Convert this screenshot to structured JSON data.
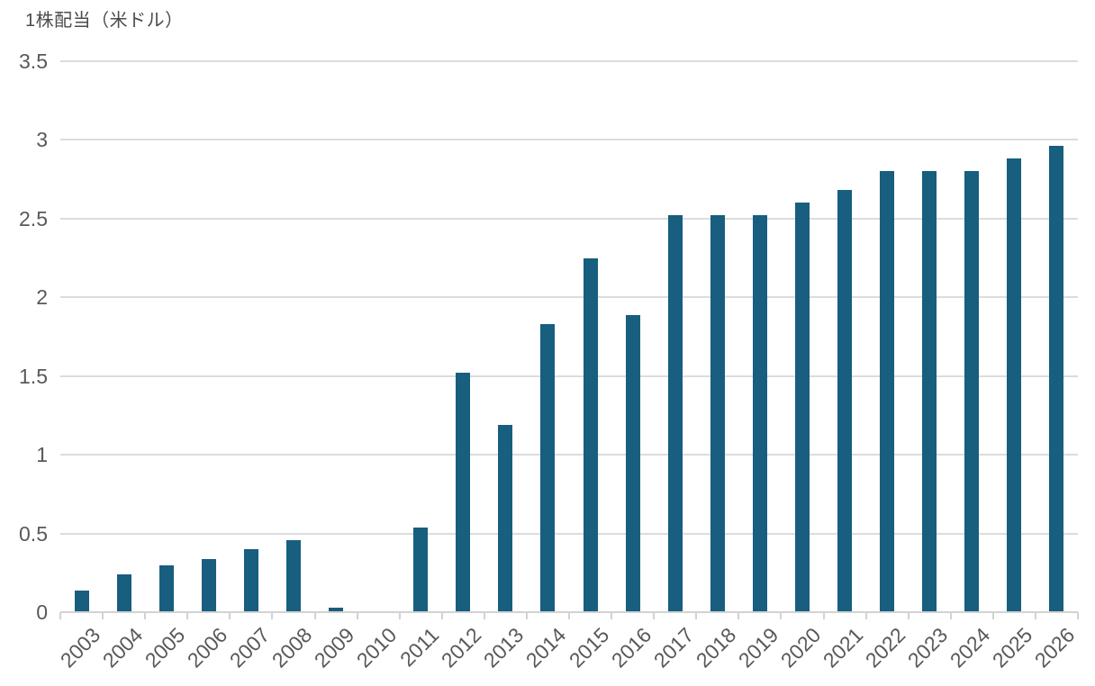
{
  "header": {
    "title": "1株配当（米ドル）"
  },
  "chart_data": {
    "type": "bar",
    "title": "1株配当（米ドル）",
    "ylabel": "1株配当（米ドル）",
    "xlabel": "",
    "categories": [
      "2003",
      "2004",
      "2005",
      "2006",
      "2007",
      "2008",
      "2009",
      "2010",
      "2011",
      "2012",
      "2013",
      "2014",
      "2015",
      "2016",
      "2017",
      "2018",
      "2019",
      "2020",
      "2021",
      "2022",
      "2023",
      "2024",
      "2025",
      "2026"
    ],
    "values": [
      0.14,
      0.24,
      0.3,
      0.34,
      0.4,
      0.46,
      0.03,
      0,
      0.54,
      1.52,
      1.19,
      1.83,
      2.25,
      1.89,
      2.52,
      2.52,
      2.52,
      2.6,
      2.68,
      2.8,
      2.8,
      2.8,
      2.88,
      2.96
    ],
    "ylim": [
      0,
      3.5
    ],
    "yticks": [
      0,
      0.5,
      1,
      1.5,
      2,
      2.5,
      3,
      3.5
    ],
    "ytick_labels": [
      "0",
      "0.5",
      "1",
      "1.5",
      "2",
      "2.5",
      "3",
      "3.5"
    ],
    "grid": true,
    "legend_position": "none",
    "colors": {
      "bar": "#175e7f",
      "gridline": "#dcdcdc",
      "axis": "#d2d2d2",
      "tick_label": "#595959",
      "title_text": "#4c4c4c",
      "background": "#ffffff"
    }
  }
}
